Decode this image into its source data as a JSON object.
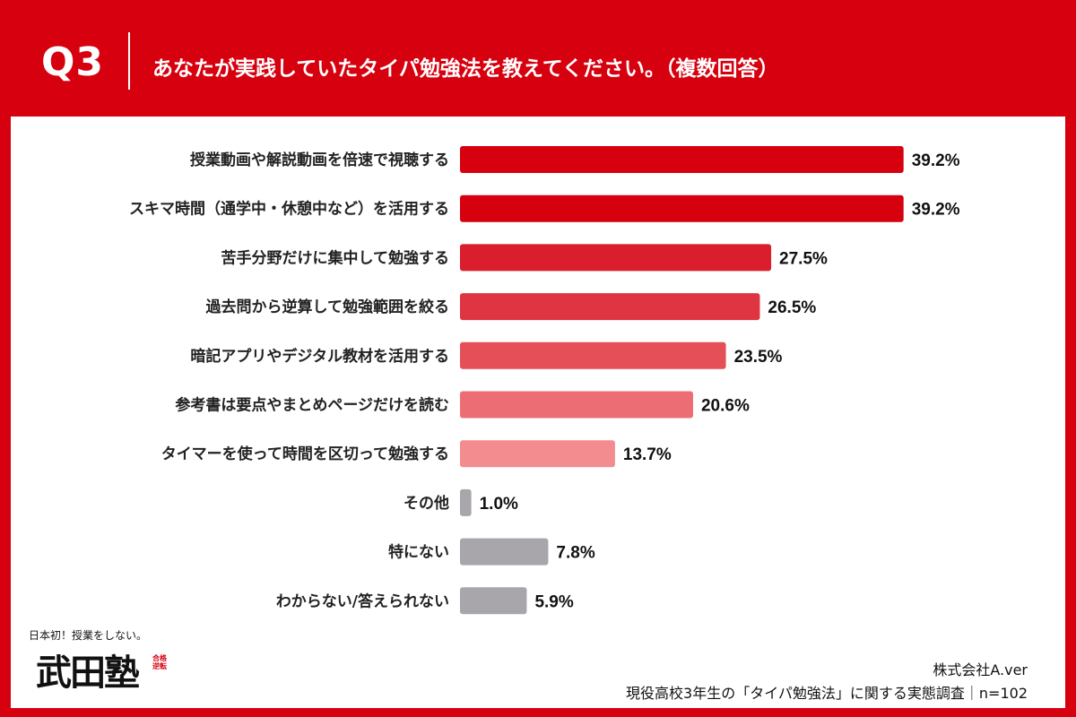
{
  "header": {
    "question_no": "Q3",
    "question": "あなたが実践していたタイパ勉強法を教えてください。（複数回答）"
  },
  "chart_data": {
    "type": "bar",
    "orientation": "horizontal",
    "categories": [
      "授業動画や解説動画を倍速で視聴する",
      "スキマ時間（通学中・休憩中など）を活用する",
      "苦手分野だけに集中して勉強する",
      "過去問から逆算して勉強範囲を絞る",
      "暗記アプリやデジタル教材を活用する",
      "参考書は要点やまとめページだけを読む",
      "タイマーを使って時間を区切って勉強する",
      "その他",
      "特にない",
      "わからない/答えられない"
    ],
    "values": [
      39.2,
      39.2,
      27.5,
      26.5,
      23.5,
      20.6,
      13.7,
      1.0,
      7.8,
      5.9
    ],
    "value_labels": [
      "39.2%",
      "39.2%",
      "27.5%",
      "26.5%",
      "23.5%",
      "20.6%",
      "13.7%",
      "1.0%",
      "7.8%",
      "5.9%"
    ],
    "colors": [
      "#d6000f",
      "#d6000f",
      "#db1e2d",
      "#df3442",
      "#e55058",
      "#ec6e74",
      "#f28c8f",
      "#a9a6ab",
      "#a9a6ab",
      "#a9a6ab"
    ],
    "xlim": [
      0,
      40
    ],
    "grid": false,
    "legend": "none"
  },
  "logo": {
    "tagline": "日本初！授業をしない。",
    "name": "武田塾",
    "sub": "合格逆転"
  },
  "footer": {
    "company": "株式会社A.ver",
    "source": "現役高校3年生の「タイパ勉強法」に関する実態調査｜n=102"
  }
}
